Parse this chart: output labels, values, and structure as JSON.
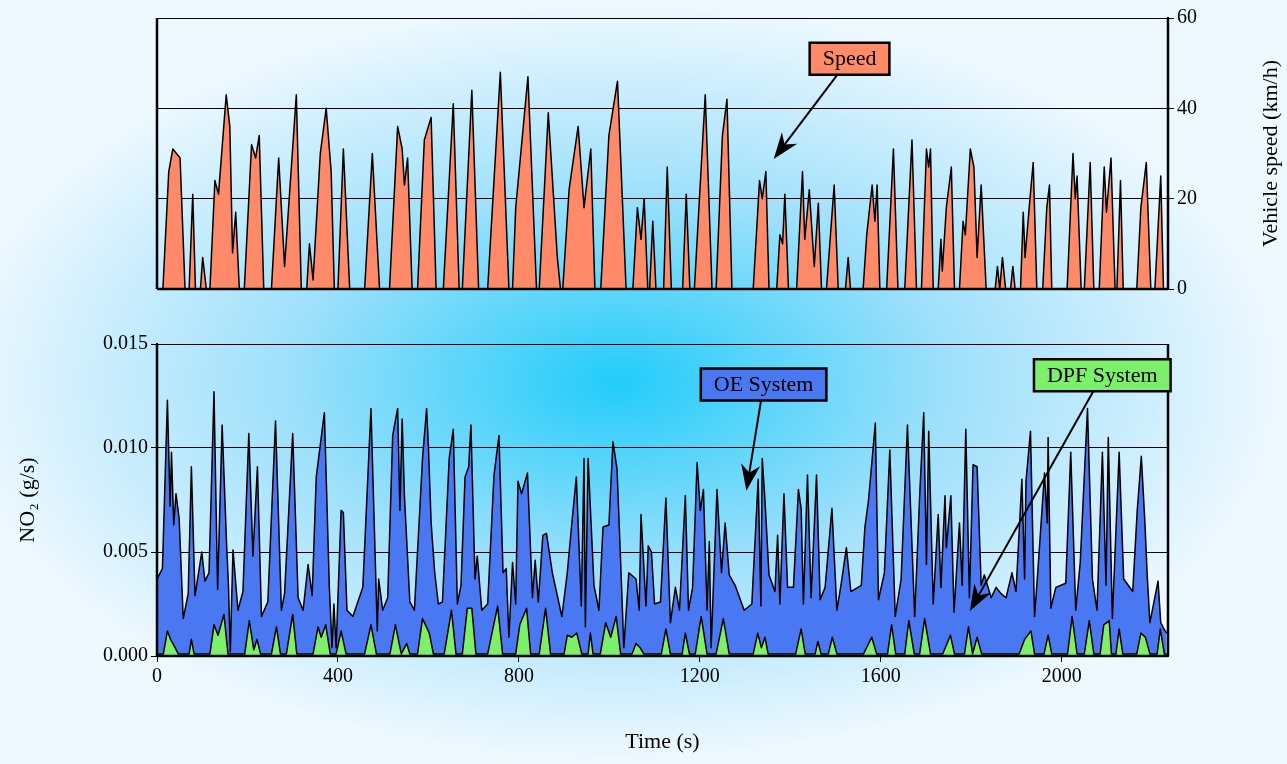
{
  "chart_data": [
    {
      "type": "area",
      "xlim": [
        0,
        2235
      ],
      "y2lim": [
        0,
        60
      ],
      "y2ticks": [
        0,
        20,
        40,
        60
      ],
      "y2label": "Vehicle speed (km/h)",
      "grid": "y",
      "tick_labels": "y2",
      "series": [
        {
          "name": "Speed",
          "color": "#ff8a6a",
          "axis": "y2",
          "x": [
            0,
            13,
            26,
            35,
            51,
            62,
            71,
            79,
            85,
            96,
            101,
            109,
            117,
            128,
            136,
            153,
            161,
            167,
            174,
            182,
            193,
            209,
            218,
            226,
            236,
            253,
            269,
            282,
            308,
            319,
            331,
            337,
            345,
            361,
            374,
            385,
            392,
            400,
            412,
            426,
            459,
            476,
            492,
            514,
            532,
            542,
            547,
            554,
            564,
            576,
            591,
            606,
            617,
            633,
            655,
            668,
            675,
            696,
            711,
            731,
            759,
            778,
            786,
            793,
            820,
            839,
            845,
            865,
            885,
            892,
            897,
            911,
            931,
            944,
            959,
            968,
            981,
            999,
            1018,
            1037,
            1052,
            1062,
            1070,
            1077,
            1085,
            1089,
            1096,
            1103,
            1120,
            1128,
            1137,
            1162,
            1170,
            1178,
            1188,
            1212,
            1227,
            1236,
            1250,
            1260,
            1271,
            1318,
            1332,
            1338,
            1346,
            1353,
            1370,
            1377,
            1383,
            1388,
            1396,
            1414,
            1427,
            1432,
            1442,
            1453,
            1462,
            1469,
            1480,
            1497,
            1506,
            1522,
            1528,
            1533,
            1561,
            1569,
            1581,
            1587,
            1592,
            1598,
            1613,
            1628,
            1638,
            1653,
            1669,
            1679,
            1690,
            1701,
            1706,
            1710,
            1716,
            1727,
            1733,
            1736,
            1745,
            1756,
            1763,
            1774,
            1782,
            1787,
            1798,
            1806,
            1813,
            1822,
            1833,
            1853,
            1858,
            1863,
            1869,
            1876,
            1887,
            1892,
            1897,
            1909,
            1915,
            1919,
            1929,
            1937,
            1945,
            1958,
            1967,
            1973,
            1978,
            2012,
            2025,
            2030,
            2034,
            2043,
            2050,
            2063,
            2071,
            2083,
            2094,
            2099,
            2109,
            2118,
            2122,
            2130,
            2136,
            2166,
            2175,
            2187,
            2197,
            2206,
            2219,
            2225,
            2235
          ],
          "values": [
            0,
            0,
            26,
            31,
            29,
            0,
            0,
            21,
            0,
            0,
            7,
            0,
            0,
            24,
            21,
            43,
            36,
            8,
            17,
            0,
            0,
            32,
            29,
            34,
            0,
            0,
            29,
            5,
            43,
            0,
            0,
            10,
            2,
            30,
            40,
            26,
            0,
            0,
            31,
            0,
            0,
            30,
            0,
            0,
            36,
            31,
            23,
            29,
            0,
            0,
            33,
            38,
            0,
            0,
            41,
            0,
            0,
            44,
            0,
            0,
            48,
            0,
            0,
            18,
            47,
            0,
            0,
            39,
            7,
            0,
            0,
            22,
            36,
            18,
            31,
            0,
            0,
            34,
            46,
            0,
            0,
            18,
            11,
            20,
            0,
            0,
            15,
            0,
            0,
            27,
            0,
            0,
            21,
            0,
            0,
            43,
            0,
            0,
            34,
            42,
            0,
            0,
            24,
            20,
            26,
            0,
            0,
            12,
            10,
            21,
            0,
            0,
            26,
            11,
            22,
            5,
            19,
            0,
            0,
            23,
            0,
            0,
            7,
            0,
            0,
            12,
            23,
            15,
            23,
            0,
            0,
            31,
            0,
            0,
            33,
            0,
            0,
            31,
            27,
            31,
            0,
            0,
            11,
            4,
            18,
            27,
            0,
            0,
            15,
            12,
            31,
            27,
            7,
            23,
            0,
            0,
            5,
            0,
            7,
            0,
            0,
            5,
            0,
            0,
            17,
            7,
            19,
            28,
            0,
            0,
            18,
            23,
            0,
            0,
            30,
            20,
            25,
            0,
            0,
            28,
            0,
            0,
            27,
            17,
            29,
            0,
            0,
            24,
            0,
            0,
            18,
            28,
            0,
            0,
            25,
            0,
            0
          ]
        }
      ]
    },
    {
      "type": "area",
      "xlim": [
        0,
        2235
      ],
      "xticks": [
        0,
        400,
        800,
        1200,
        1600,
        2000
      ],
      "ylim": [
        0,
        0.015
      ],
      "yticks": [
        {
          "value": 0,
          "label": "0.000"
        },
        {
          "value": 0.005,
          "label": "0.005"
        },
        {
          "value": 0.01,
          "label": "0.010"
        },
        {
          "value": 0.015,
          "label": "0.015"
        }
      ],
      "xlabel": "Time (s)",
      "ylabel": "NO₂ (g/s)",
      "grid": "y",
      "series": [
        {
          "name": "OE System",
          "color": "#4a78f2",
          "x": [
            0,
            12,
            23,
            29,
            32,
            37,
            42,
            49,
            58,
            69,
            76,
            84,
            99,
            106,
            115,
            126,
            134,
            144,
            154,
            158,
            162,
            168,
            179,
            190,
            203,
            212,
            222,
            231,
            245,
            262,
            275,
            282,
            300,
            312,
            323,
            334,
            343,
            352,
            370,
            381,
            387,
            391,
            396,
            407,
            412,
            420,
            433,
            455,
            473,
            487,
            490,
            499,
            510,
            521,
            532,
            537,
            542,
            547,
            559,
            569,
            587,
            596,
            600,
            606,
            614,
            622,
            631,
            646,
            655,
            664,
            672,
            681,
            689,
            694,
            703,
            708,
            718,
            731,
            745,
            756,
            765,
            772,
            778,
            786,
            793,
            798,
            806,
            819,
            830,
            836,
            843,
            853,
            861,
            874,
            883,
            895,
            907,
            918,
            927,
            938,
            944,
            947,
            953,
            966,
            977,
            986,
            999,
            1008,
            1017,
            1025,
            1032,
            1043,
            1059,
            1066,
            1070,
            1081,
            1086,
            1093,
            1100,
            1113,
            1125,
            1135,
            1146,
            1155,
            1168,
            1175,
            1184,
            1194,
            1201,
            1208,
            1216,
            1221,
            1225,
            1238,
            1248,
            1256,
            1265,
            1278,
            1298,
            1315,
            1329,
            1335,
            1338,
            1344,
            1353,
            1366,
            1372,
            1377,
            1386,
            1394,
            1407,
            1418,
            1424,
            1429,
            1438,
            1446,
            1458,
            1466,
            1477,
            1492,
            1503,
            1512,
            1524,
            1534,
            1557,
            1565,
            1573,
            1588,
            1595,
            1608,
            1620,
            1632,
            1645,
            1659,
            1675,
            1686,
            1695,
            1701,
            1706,
            1716,
            1727,
            1733,
            1742,
            1745,
            1755,
            1762,
            1774,
            1780,
            1788,
            1796,
            1804,
            1813,
            1822,
            1829,
            1844,
            1855,
            1866,
            1877,
            1890,
            1899,
            1912,
            1918,
            1921,
            1931,
            1940,
            1947,
            1962,
            1968,
            1970,
            1976,
            1987,
            2009,
            2020,
            2031,
            2041,
            2057,
            2068,
            2078,
            2090,
            2098,
            2103,
            2112,
            2127,
            2137,
            2157,
            2167,
            2176,
            2184,
            2189,
            2195,
            2204,
            2213,
            2219,
            2226,
            2232
          ],
          "values": [
            0.0037,
            0.0042,
            0.0123,
            0.0072,
            0.0098,
            0.0063,
            0.0078,
            0.0066,
            0.0018,
            0.003,
            0.0091,
            0.0029,
            0.005,
            0.0036,
            0.004,
            0.0127,
            0.0032,
            0.0111,
            0.0053,
            0.0034,
            0.0002,
            0.0051,
            0.0022,
            0.0031,
            0.0107,
            0.0048,
            0.0091,
            0.0019,
            0.0026,
            0.0113,
            0.0022,
            0.003,
            0.0107,
            0.0028,
            0.0022,
            0.0044,
            0.0029,
            0.0086,
            0.0117,
            0.0033,
            0.0004,
            0.0025,
            0.0004,
            0.007,
            0.0069,
            0.0022,
            0.0019,
            0.0033,
            0.0119,
            0.0012,
            0.0037,
            0.0022,
            0.0028,
            0.0106,
            0.0119,
            0.007,
            0.0114,
            0.0077,
            0.0026,
            0.0022,
            0.0095,
            0.0119,
            0.0101,
            0.0064,
            0.004,
            0.0025,
            0.0026,
            0.0095,
            0.0109,
            0.0025,
            0.0034,
            0.0086,
            0.0091,
            0.0111,
            0.0037,
            0.0048,
            0.0022,
            0.0025,
            0.0087,
            0.0106,
            0.004,
            0.0042,
            0.0009,
            0.0045,
            0.0025,
            0.0084,
            0.0078,
            0.0088,
            0.0028,
            0.0046,
            0.0026,
            0.0058,
            0.0059,
            0.004,
            0.0031,
            0.0019,
            0.004,
            0.0066,
            0.0086,
            0.0024,
            0.0095,
            0.0014,
            0.0095,
            0.0034,
            0.0022,
            0.0062,
            0.0063,
            0.0103,
            0.009,
            0.0045,
            0.0004,
            0.004,
            0.0037,
            0.0022,
            0.0068,
            0.0024,
            0.0053,
            0.005,
            0.0025,
            0.0026,
            0.0076,
            0.0016,
            0.0033,
            0.0022,
            0.0077,
            0.0022,
            0.0033,
            0.0093,
            0.007,
            0.008,
            0.0022,
            0.0055,
            0.0004,
            0.008,
            0.004,
            0.0064,
            0.0039,
            0.0034,
            0.0022,
            0.0025,
            0.0085,
            0.0024,
            0.0095,
            0.0075,
            0.0039,
            0.0031,
            0.0058,
            0.0025,
            0.0078,
            0.0033,
            0.0033,
            0.008,
            0.0071,
            0.0025,
            0.0087,
            0.0028,
            0.0087,
            0.0027,
            0.0033,
            0.0071,
            0.0022,
            0.0034,
            0.0052,
            0.0031,
            0.0034,
            0.0062,
            0.0075,
            0.0112,
            0.0027,
            0.004,
            0.0099,
            0.0019,
            0.0037,
            0.0111,
            0.0019,
            0.0077,
            0.0117,
            0.0044,
            0.0108,
            0.0025,
            0.0068,
            0.0033,
            0.0077,
            0.0052,
            0.0077,
            0.0021,
            0.0064,
            0.0034,
            0.0109,
            0.0028,
            0.0092,
            0.0091,
            0.0034,
            0.0039,
            0.0028,
            0.0033,
            0.003,
            0.0028,
            0.004,
            0.0031,
            0.0085,
            0.0037,
            0.0084,
            0.0108,
            0.0019,
            0.004,
            0.0088,
            0.0064,
            0.0105,
            0.0023,
            0.0033,
            0.0035,
            0.0098,
            0.0022,
            0.0045,
            0.0119,
            0.0037,
            0.0022,
            0.0098,
            0.0034,
            0.0105,
            0.0018,
            0.0098,
            0.0037,
            0.0031,
            0.007,
            0.0096,
            0.0064,
            0.0039,
            0.0016,
            0.0026,
            0.0036,
            0.0016,
            0.0013,
            0.0011
          ]
        },
        {
          "name": "DPF System",
          "color": "#7cf06a",
          "x": [
            0,
            14,
            23,
            30,
            40,
            47,
            71,
            76,
            82,
            117,
            126,
            135,
            148,
            157,
            194,
            204,
            214,
            221,
            229,
            253,
            264,
            273,
            286,
            300,
            309,
            345,
            356,
            363,
            373,
            383,
            396,
            407,
            418,
            459,
            473,
            485,
            515,
            527,
            540,
            552,
            559,
            576,
            587,
            602,
            611,
            635,
            651,
            661,
            675,
            686,
            696,
            705,
            731,
            753,
            764,
            793,
            802,
            817,
            826,
            845,
            859,
            870,
            900,
            907,
            917,
            928,
            939,
            953,
            958,
            964,
            980,
            992,
            1003,
            1015,
            1025,
            1050,
            1059,
            1068,
            1076,
            1115,
            1125,
            1135,
            1161,
            1168,
            1177,
            1190,
            1203,
            1216,
            1236,
            1252,
            1265,
            1318,
            1328,
            1336,
            1344,
            1351,
            1412,
            1424,
            1433,
            1455,
            1461,
            1468,
            1484,
            1493,
            1503,
            1562,
            1580,
            1591,
            1615,
            1624,
            1633,
            1653,
            1662,
            1674,
            1686,
            1697,
            1710,
            1737,
            1754,
            1763,
            1785,
            1794,
            1803,
            1813,
            1823,
            1906,
            1918,
            1932,
            1940,
            1961,
            1970,
            1978,
            2013,
            2023,
            2034,
            2050,
            2061,
            2071,
            2085,
            2093,
            2105,
            2110,
            2120,
            2127,
            2135,
            2166,
            2175,
            2185,
            2195,
            2211,
            2218,
            2227,
            2232
          ],
          "values": [
            0.0001,
            0.0001,
            0.0012,
            0.0008,
            0.0004,
            0.0001,
            0.0001,
            0.0008,
            0.0001,
            0.0001,
            0.0015,
            0.001,
            0.002,
            0.0001,
            0.0001,
            0.0017,
            0.0003,
            0.0008,
            0.0001,
            0.0001,
            0.0014,
            0.0001,
            0.0001,
            0.002,
            0.0001,
            0.0001,
            0.0014,
            0.0009,
            0.0015,
            0.0001,
            0.0001,
            0.0012,
            0.0001,
            0.0001,
            0.0015,
            0.0001,
            0.0001,
            0.0015,
            0.0001,
            0.0006,
            0.0001,
            0.0001,
            0.0018,
            0.0011,
            0.0001,
            0.0001,
            0.0022,
            0.0001,
            0.0001,
            0.0023,
            0.0023,
            0.0001,
            0.0001,
            0.0024,
            0.0001,
            0.0001,
            0.0015,
            0.0023,
            0.0001,
            0.0001,
            0.0023,
            0.0001,
            0.0001,
            0.001,
            0.0009,
            0.0011,
            0.0001,
            0.0001,
            0.0011,
            0.0001,
            0.0001,
            0.0016,
            0.0009,
            0.0019,
            0.0001,
            0.0001,
            0.0006,
            0.0004,
            0.0001,
            0.0001,
            0.0013,
            0.0001,
            0.0001,
            0.0011,
            0.0001,
            0.0001,
            0.0019,
            0.0001,
            0.0001,
            0.0018,
            0.0001,
            0.0001,
            0.0011,
            0.0004,
            0.0009,
            0.0001,
            0.0001,
            0.0013,
            0.0001,
            0.0001,
            0.0007,
            0.0001,
            0.0001,
            0.0009,
            0.0001,
            0.0001,
            0.0009,
            0.0001,
            0.0001,
            0.0015,
            0.0001,
            0.0001,
            0.0017,
            0.0001,
            0.0001,
            0.0018,
            0.0001,
            0.0001,
            0.001,
            0.0001,
            0.0001,
            0.0014,
            0.0001,
            0.0009,
            0.0001,
            0.0001,
            0.0008,
            0.0012,
            0.0001,
            0.0001,
            0.001,
            0.0001,
            0.0001,
            0.0019,
            0.0001,
            0.0001,
            0.0017,
            0.0001,
            0.0001,
            0.0015,
            0.0017,
            0.0001,
            0.0001,
            0.0013,
            0.0001,
            0.0001,
            0.0011,
            0.0009,
            0.0001,
            0.0001,
            0.0013,
            0.0001,
            0.0001
          ]
        }
      ]
    }
  ]
}
